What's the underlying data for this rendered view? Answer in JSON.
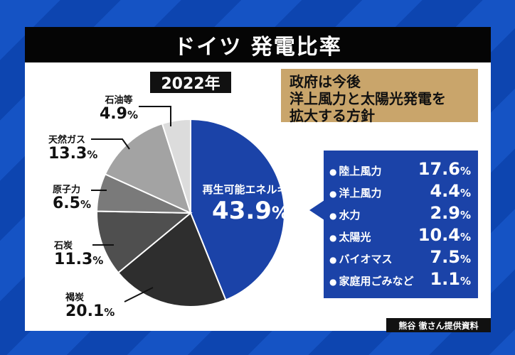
{
  "title": "ドイツ 発電比率",
  "year": "2022年",
  "note_lines": [
    "政府は今後",
    "洋上風力と太陽光発電を",
    "拡大する方針"
  ],
  "credit": "熊谷 徹さん提供資料",
  "percent_sign": "%",
  "chart_data": {
    "type": "pie",
    "title": "ドイツ 発電比率",
    "subtitle": "2022年",
    "start": "top",
    "direction": "clockwise",
    "slices": [
      {
        "label": "再生可能エネルギー",
        "value": 43.9,
        "display": "43.9",
        "color": "#1b43a8"
      },
      {
        "label": "褐炭",
        "value": 20.1,
        "display": "20.1",
        "color": "#2e2e2e"
      },
      {
        "label": "石炭",
        "value": 11.3,
        "display": "11.3",
        "color": "#4f4f4f"
      },
      {
        "label": "原子力",
        "value": 6.5,
        "display": "6.5",
        "color": "#7a7a7a"
      },
      {
        "label": "天然ガス",
        "value": 13.3,
        "display": "13.3",
        "color": "#a3a3a3"
      },
      {
        "label": "石油等",
        "value": 4.9,
        "display": "4.9",
        "color": "#dcdcdc"
      }
    ],
    "renewable_breakdown": [
      {
        "label": "陸上風力",
        "value": 17.6,
        "display": "17.6"
      },
      {
        "label": "洋上風力",
        "value": 4.4,
        "display": "4.4"
      },
      {
        "label": "水力",
        "value": 2.9,
        "display": "2.9"
      },
      {
        "label": "太陽光",
        "value": 10.4,
        "display": "10.4"
      },
      {
        "label": "バイオマス",
        "value": 7.5,
        "display": "7.5"
      },
      {
        "label": "家庭用ごみなど",
        "value": 1.1,
        "display": "1.1"
      }
    ]
  }
}
